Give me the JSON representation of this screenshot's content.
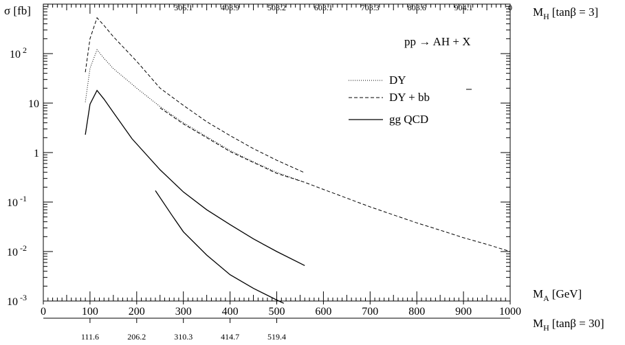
{
  "chart_data": {
    "type": "line",
    "ylabel": "σ [fb]",
    "xlabel": "M",
    "xlabel_sub": "A",
    "xlabel_unit": "[GeV]",
    "x_range": [
      0,
      1000
    ],
    "y_range": [
      0.001,
      1000
    ],
    "y_scale": "log",
    "x_ticks": [
      "0",
      "100",
      "200",
      "300",
      "400",
      "500",
      "600",
      "700",
      "800",
      "900",
      "1000"
    ],
    "y_ticks": [
      {
        "base": "10",
        "exp": "-3"
      },
      {
        "base": "10",
        "exp": "-2"
      },
      {
        "base": "10",
        "exp": "-1"
      },
      {
        "base": "1",
        "exp": ""
      },
      {
        "base": "10",
        "exp": ""
      },
      {
        "base": "10",
        "exp": "2"
      }
    ],
    "process": "pp → AH + X",
    "top_axis": {
      "label": "M",
      "label_sub": "H",
      "label_suffix": "[tanβ = 3]",
      "ticks": [
        {
          "x": 300,
          "label": "306.1"
        },
        {
          "x": 400,
          "label": "403.9"
        },
        {
          "x": 500,
          "label": "503.2"
        },
        {
          "x": 600,
          "label": "603.1"
        },
        {
          "x": 700,
          "label": "703.3"
        },
        {
          "x": 800,
          "label": "803.6"
        },
        {
          "x": 900,
          "label": "904.1"
        },
        {
          "x": 1000,
          "label": "0"
        }
      ]
    },
    "bottom_axis": {
      "label": "M",
      "label_sub": "H",
      "label_suffix": "[tanβ = 30]",
      "ticks": [
        {
          "x": 100,
          "label": "111.6"
        },
        {
          "x": 200,
          "label": "206.2"
        },
        {
          "x": 300,
          "label": "310.3"
        },
        {
          "x": 400,
          "label": "414.7"
        },
        {
          "x": 500,
          "label": "519.4"
        }
      ]
    },
    "legend": [
      {
        "label": "DY",
        "style": "dotted"
      },
      {
        "label": "DY + bb",
        "style": "dashed"
      },
      {
        "label": "gg QCD",
        "style": "solid"
      }
    ],
    "series": [
      {
        "name": "DY",
        "style": "dotted",
        "x": [
          90,
          100,
          115,
          130,
          150,
          200,
          250,
          300,
          350,
          400,
          450,
          500,
          560
        ],
        "y": [
          10.5,
          50,
          120,
          80,
          50,
          20,
          8.5,
          4.0,
          2.1,
          1.1,
          0.65,
          0.4,
          0.25
        ]
      },
      {
        "name": "DY + bb",
        "style": "dashed",
        "x": [
          90,
          100,
          115,
          130,
          150,
          200,
          250,
          300,
          350,
          400,
          450,
          500,
          560
        ],
        "y": [
          42,
          200,
          530,
          370,
          220,
          70,
          20,
          9.0,
          4.2,
          2.2,
          1.2,
          0.7,
          0.39
        ]
      },
      {
        "name": "DY + bb (tanβ = 3)",
        "style": "dashed",
        "x": [
          250,
          300,
          350,
          400,
          450,
          500,
          560,
          600,
          650,
          700,
          750,
          800,
          850,
          900,
          950,
          1000
        ],
        "y": [
          8.0,
          3.8,
          2.0,
          1.05,
          0.63,
          0.38,
          0.25,
          0.18,
          0.12,
          0.08,
          0.055,
          0.038,
          0.027,
          0.019,
          0.014,
          0.01
        ]
      },
      {
        "name": "gg QCD",
        "style": "solid",
        "x": [
          90,
          100,
          115,
          130,
          150,
          190,
          250,
          300,
          350,
          400,
          450,
          500,
          560
        ],
        "y": [
          2.3,
          9.5,
          18,
          12,
          6.5,
          1.9,
          0.45,
          0.16,
          0.07,
          0.035,
          0.018,
          0.01,
          0.0052
        ]
      },
      {
        "name": "gg QCD (tanβ = 30)",
        "style": "solid",
        "x": [
          240,
          275,
          300,
          350,
          400,
          450,
          500,
          515
        ],
        "y": [
          0.17,
          0.055,
          0.025,
          0.0085,
          0.0034,
          0.0018,
          0.00105,
          0.0009
        ]
      }
    ]
  }
}
